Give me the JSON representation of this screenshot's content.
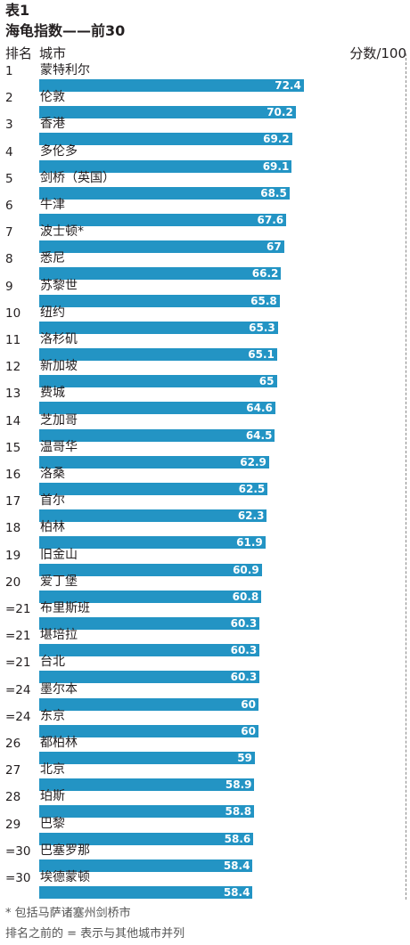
{
  "header": {
    "table_label": "表1",
    "title": "海龟指数——前30",
    "rank_label": "排名",
    "city_label": "城市",
    "score_label": "分数/100"
  },
  "colors": {
    "bar": "#2394c4",
    "bar_label": "#ffffff",
    "text": "#231f20"
  },
  "chart_data": {
    "type": "bar",
    "orientation": "horizontal",
    "title": "海龟指数——前30",
    "xlabel": "分数/100",
    "ylabel": "城市",
    "xlim": [
      0,
      100
    ],
    "ranks": [
      "1",
      "2",
      "3",
      "4",
      "5",
      "6",
      "7",
      "8",
      "9",
      "10",
      "11",
      "12",
      "13",
      "14",
      "15",
      "16",
      "17",
      "18",
      "19",
      "20",
      "=21",
      "=21",
      "=21",
      "=24",
      "=24",
      "26",
      "27",
      "28",
      "29",
      "=30",
      "=30"
    ],
    "categories": [
      "蒙特利尔",
      "伦敦",
      "香港",
      "多伦多",
      "剑桥（英国）",
      "牛津",
      "波士顿*",
      "悉尼",
      "苏黎世",
      "纽约",
      "洛杉矶",
      "新加坡",
      "费城",
      "芝加哥",
      "温哥华",
      "洛桑",
      "首尔",
      "柏林",
      "旧金山",
      "爱丁堡",
      "布里斯班",
      "堪培拉",
      "台北",
      "墨尔本",
      "东京",
      "都柏林",
      "北京",
      "珀斯",
      "巴黎",
      "巴塞罗那",
      "埃德蒙顿"
    ],
    "values": [
      72.4,
      70.2,
      69.2,
      69.1,
      68.5,
      67.6,
      67,
      66.2,
      65.8,
      65.3,
      65.1,
      65,
      64.6,
      64.5,
      62.9,
      62.5,
      62.3,
      61.9,
      60.9,
      60.8,
      60.3,
      60.3,
      60.3,
      60,
      60,
      59,
      58.9,
      58.8,
      58.6,
      58.4,
      58.4
    ]
  },
  "footnotes": {
    "note1": "* 包括马萨诸塞州剑桥市",
    "note2": "排名之前的 = 表示与其他城市并列"
  }
}
